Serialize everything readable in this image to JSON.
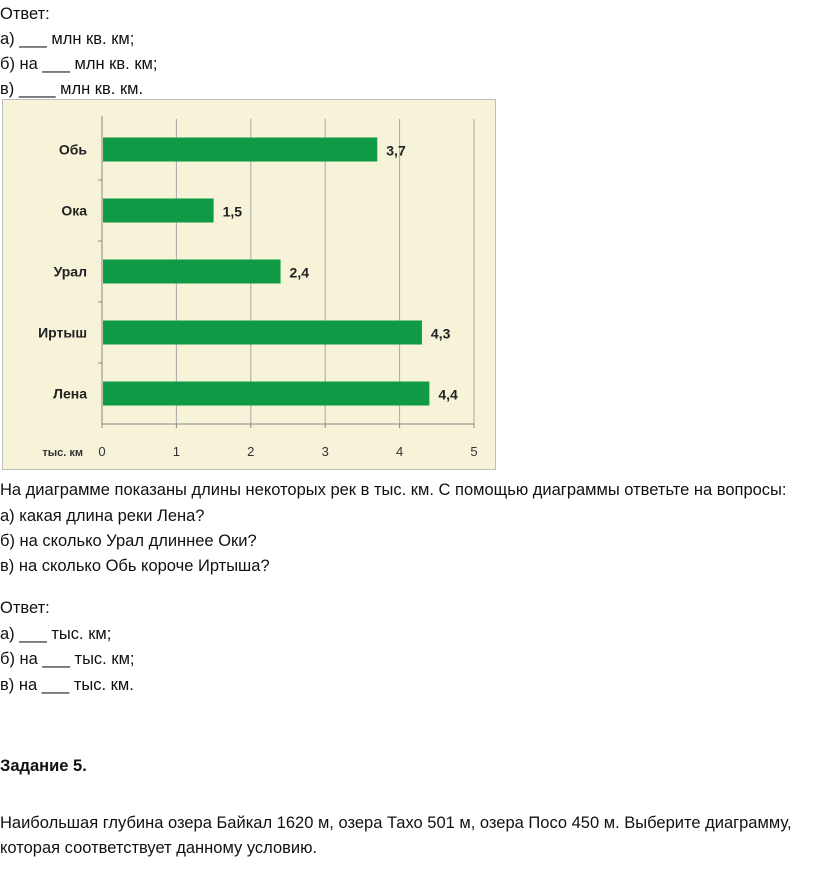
{
  "answer1": {
    "label": "Ответ:",
    "a": "а) ___ млн кв. км;",
    "b": "б) на ___ млн кв. км;",
    "c": "в) ____ млн кв. км."
  },
  "task4": {
    "prompt": "На диаграмме показаны длины некоторых рек в тыс. км. С помощью диаграммы ответьте на вопросы:",
    "q_a": "а) какая длина реки Лена?",
    "q_b": "б) на сколько Урал длиннее Оки?",
    "q_c": "в) на сколько Обь короче Иртыша?"
  },
  "answer2": {
    "label": "Ответ:",
    "a": "а) ___ тыс. км;",
    "b": "б) на ___ тыс. км;",
    "c": "в) на ___ тыс. км."
  },
  "task5": {
    "title": "Задание 5.",
    "line1": "Наибольшая глубина озера Байкал 1620 м, озера Тахо 501 м, озера Посо 450 м. Выберите диаграмму,",
    "line2": "которая соответствует данному условию."
  },
  "chart_data": {
    "type": "bar",
    "orientation": "horizontal",
    "categories": [
      "Обь",
      "Ока",
      "Урал",
      "Иртыш",
      "Лена"
    ],
    "values": [
      3.7,
      1.5,
      2.4,
      4.3,
      4.4
    ],
    "value_labels": [
      "3,7",
      "1,5",
      "2,4",
      "4,3",
      "4,4"
    ],
    "xlabel": "тыс. км",
    "xlim": [
      0,
      5
    ],
    "xticks": [
      "0",
      "1",
      "2",
      "3",
      "4",
      "5"
    ],
    "grid": true,
    "colors": {
      "bar": "#0f9a45",
      "background": "#f6f3d8",
      "grid": "#a9a9a9"
    }
  }
}
